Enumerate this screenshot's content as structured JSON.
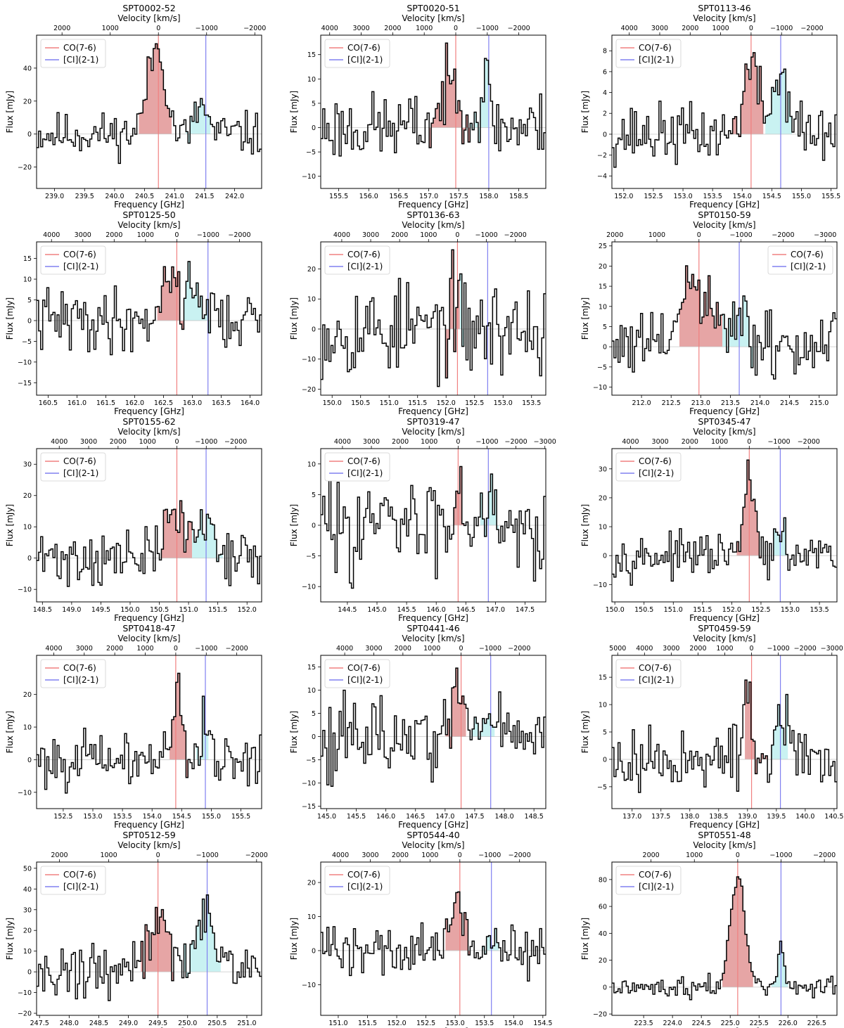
{
  "common": {
    "xlabel": "Frequency [GHz]",
    "x2label": "Velocity [km/s]",
    "ylabel": "Flux [mJy]",
    "legend": [
      "CO(7-6)",
      "[CI](2-1)"
    ],
    "colors": {
      "co_line": "#f08080",
      "ci_line": "#8080f0",
      "co_fill": "#e6a5a5",
      "ci_fill": "#c9f2f2",
      "spectrum": "#000000"
    }
  },
  "chart_data": [
    {
      "type": "line",
      "title": "SPT0002-52",
      "xlim": [
        238.7,
        242.45
      ],
      "ylim": [
        -33,
        60
      ],
      "xticks": [
        239.0,
        239.5,
        240.0,
        240.5,
        241.0,
        241.5,
        242.0
      ],
      "yticks": [
        -20,
        0,
        20,
        40
      ],
      "vticks": [
        2000,
        1000,
        0,
        -1000,
        -2000
      ],
      "co": 240.73,
      "ci": 241.52,
      "co_range": [
        240.4,
        240.95
      ],
      "ci_range": [
        241.2,
        241.6
      ],
      "legend_loc": "upper left",
      "peaks": [
        {
          "c": 240.65,
          "w": 0.13,
          "a": 42
        },
        {
          "c": 240.8,
          "w": 0.1,
          "a": 22
        },
        {
          "c": 241.45,
          "w": 0.09,
          "a": 18
        }
      ],
      "noise": 6.5,
      "seed": 11
    },
    {
      "type": "line",
      "title": "SPT0020-51",
      "xlim": [
        155.2,
        158.95
      ],
      "ylim": [
        -12.5,
        19
      ],
      "xticks": [
        155.5,
        156.0,
        156.5,
        157.0,
        157.5,
        158.0,
        158.5
      ],
      "yticks": [
        -10,
        -5,
        0,
        5,
        10,
        15
      ],
      "vticks": [
        4000,
        3000,
        2000,
        1000,
        0,
        -1000,
        -2000
      ],
      "co": 157.45,
      "ci": 158.0,
      "co_range": [
        157.0,
        157.7
      ],
      "ci_range": [
        157.7,
        158.0
      ],
      "legend_loc": "upper left",
      "peaks": [
        {
          "c": 157.4,
          "w": 0.18,
          "a": 9
        },
        {
          "c": 157.95,
          "w": 0.08,
          "a": 9
        }
      ],
      "noise": 3.5,
      "seed": 23
    },
    {
      "type": "line",
      "title": "SPT0113-46",
      "xlim": [
        151.8,
        155.6
      ],
      "ylim": [
        -5.2,
        9.5
      ],
      "xticks": [
        152.0,
        152.5,
        153.0,
        153.5,
        154.0,
        154.5,
        155.0,
        155.5
      ],
      "yticks": [
        -4,
        -2,
        0,
        2,
        4,
        6,
        8
      ],
      "vticks": [
        4000,
        3000,
        2000,
        1000,
        0,
        -1000,
        -2000
      ],
      "co": 154.15,
      "ci": 154.65,
      "co_range": [
        153.85,
        154.35
      ],
      "ci_range": [
        154.4,
        154.85
      ],
      "legend_loc": "upper left",
      "peaks": [
        {
          "c": 154.15,
          "w": 0.13,
          "a": 6.5
        },
        {
          "c": 154.65,
          "w": 0.14,
          "a": 5.5
        }
      ],
      "noise": 1.4,
      "seed": 37
    },
    {
      "type": "line",
      "title": "SPT0125-50",
      "xlim": [
        160.3,
        164.2
      ],
      "ylim": [
        -18,
        19
      ],
      "xticks": [
        160.5,
        161.0,
        161.5,
        162.0,
        162.5,
        163.0,
        163.5,
        164.0
      ],
      "yticks": [
        -15,
        -10,
        -5,
        0,
        5,
        10,
        15
      ],
      "vticks": [
        4000,
        3000,
        2000,
        1000,
        0,
        -1000,
        -2000
      ],
      "co": 162.73,
      "ci": 163.27,
      "co_range": [
        162.4,
        162.85
      ],
      "ci_range": [
        162.85,
        163.3
      ],
      "legend_loc": "upper left",
      "peaks": [
        {
          "c": 162.6,
          "w": 0.14,
          "a": 11
        },
        {
          "c": 163.05,
          "w": 0.16,
          "a": 8
        }
      ],
      "noise": 3.8,
      "seed": 41
    },
    {
      "type": "line",
      "title": "SPT0136-63",
      "xlim": [
        149.8,
        153.75
      ],
      "ylim": [
        -22,
        29
      ],
      "xticks": [
        150.0,
        150.5,
        151.0,
        151.5,
        152.0,
        152.5,
        153.0,
        153.5
      ],
      "yticks": [
        -20,
        -10,
        0,
        10,
        20
      ],
      "vticks": [
        4000,
        3000,
        2000,
        1000,
        0,
        -1000,
        -2000
      ],
      "co": 152.2,
      "ci": 152.73,
      "co_range": [
        152.0,
        152.25
      ],
      "ci_range": [
        152.25,
        152.3
      ],
      "legend_loc": "upper left",
      "peaks": [
        {
          "c": 152.15,
          "w": 0.08,
          "a": 7
        }
      ],
      "noise": 8,
      "seed": 53
    },
    {
      "type": "line",
      "title": "SPT0150-59",
      "xlim": [
        211.5,
        215.3
      ],
      "ylim": [
        -12,
        26
      ],
      "xticks": [
        212.0,
        212.5,
        213.0,
        213.5,
        214.0,
        214.5,
        215.0
      ],
      "yticks": [
        -10,
        -5,
        0,
        5,
        10,
        15,
        20,
        25
      ],
      "vticks": [
        2000,
        1000,
        0,
        -1000,
        -2000,
        -3000
      ],
      "co": 212.97,
      "ci": 213.65,
      "co_range": [
        212.65,
        213.35
      ],
      "ci_range": [
        213.35,
        213.9
      ],
      "legend_loc": "upper right",
      "peaks": [
        {
          "c": 212.9,
          "w": 0.22,
          "a": 15
        },
        {
          "c": 213.6,
          "w": 0.14,
          "a": 7
        }
      ],
      "noise": 4.5,
      "seed": 61
    },
    {
      "type": "line",
      "title": "SPT0155-62",
      "xlim": [
        148.4,
        152.25
      ],
      "ylim": [
        -14,
        35
      ],
      "xticks": [
        148.5,
        149.0,
        149.5,
        150.0,
        150.5,
        151.0,
        151.5,
        152.0
      ],
      "yticks": [
        -10,
        0,
        10,
        20,
        30
      ],
      "vticks": [
        4000,
        3000,
        2000,
        1000,
        0,
        -1000,
        -2000
      ],
      "co": 150.8,
      "ci": 151.3,
      "co_range": [
        150.55,
        151.05
      ],
      "ci_range": [
        151.05,
        151.6
      ],
      "legend_loc": "upper left",
      "peaks": [
        {
          "c": 150.75,
          "w": 0.16,
          "a": 14
        },
        {
          "c": 151.3,
          "w": 0.2,
          "a": 11
        }
      ],
      "noise": 4.5,
      "seed": 71
    },
    {
      "type": "line",
      "title": "SPT0319-47",
      "xlim": [
        144.05,
        147.85
      ],
      "ylim": [
        -12.5,
        12.5
      ],
      "xticks": [
        144.5,
        145.0,
        145.5,
        146.0,
        146.5,
        147.0,
        147.5
      ],
      "yticks": [
        -10,
        -5,
        0,
        5,
        10
      ],
      "vticks": [
        4000,
        3000,
        2000,
        1000,
        0,
        -1000,
        -2000,
        -3000
      ],
      "co": 146.37,
      "ci": 146.88,
      "co_range": [
        146.3,
        146.5
      ],
      "ci_range": [
        146.75,
        147.05
      ],
      "legend_loc": "upper left",
      "peaks": [
        {
          "c": 146.38,
          "w": 0.08,
          "a": 7
        },
        {
          "c": 146.88,
          "w": 0.12,
          "a": 6
        }
      ],
      "noise": 3.8,
      "seed": 83
    },
    {
      "type": "line",
      "title": "SPT0345-47",
      "xlim": [
        149.95,
        153.8
      ],
      "ylim": [
        -16,
        37
      ],
      "xticks": [
        150.0,
        150.5,
        151.0,
        151.5,
        152.0,
        152.5,
        153.0,
        153.5
      ],
      "yticks": [
        -10,
        0,
        10,
        20,
        30
      ],
      "vticks": [
        4000,
        3000,
        2000,
        1000,
        0,
        -1000,
        -2000
      ],
      "co": 152.3,
      "ci": 152.83,
      "co_range": [
        152.1,
        152.5
      ],
      "ci_range": [
        152.7,
        152.95
      ],
      "legend_loc": "upper left",
      "peaks": [
        {
          "c": 152.3,
          "w": 0.08,
          "a": 29
        },
        {
          "c": 152.82,
          "w": 0.07,
          "a": 7
        }
      ],
      "noise": 3.5,
      "seed": 97
    },
    {
      "type": "line",
      "title": "SPT0418-47",
      "xlim": [
        152.05,
        155.85
      ],
      "ylim": [
        -15,
        32
      ],
      "xticks": [
        152.5,
        153.0,
        153.5,
        154.0,
        154.5,
        155.0,
        155.5
      ],
      "yticks": [
        -10,
        0,
        10,
        20
      ],
      "vticks": [
        4000,
        3000,
        2000,
        1000,
        0,
        -1000,
        -2000
      ],
      "co": 154.4,
      "ci": 154.9,
      "co_range": [
        154.3,
        154.6
      ],
      "ci_range": [
        154.75,
        154.95
      ],
      "legend_loc": "upper left",
      "peaks": [
        {
          "c": 154.43,
          "w": 0.07,
          "a": 25
        },
        {
          "c": 154.9,
          "w": 0.06,
          "a": 14
        }
      ],
      "noise": 4,
      "seed": 101
    },
    {
      "type": "line",
      "title": "SPT0441-46",
      "xlim": [
        144.9,
        148.7
      ],
      "ylim": [
        -15.5,
        17.5
      ],
      "xticks": [
        145.0,
        145.5,
        146.0,
        146.5,
        147.0,
        147.5,
        148.0,
        148.5
      ],
      "yticks": [
        -15,
        -10,
        -5,
        0,
        5,
        10,
        15
      ],
      "vticks": [
        4000,
        3000,
        2000,
        1000,
        0,
        -1000,
        -2000,
        -3000
      ],
      "co": 147.27,
      "ci": 147.77,
      "co_range": [
        147.0,
        147.35
      ],
      "ci_range": [
        147.45,
        147.85
      ],
      "legend_loc": "upper left",
      "peaks": [
        {
          "c": 147.22,
          "w": 0.1,
          "a": 9
        },
        {
          "c": 147.75,
          "w": 0.1,
          "a": 7
        }
      ],
      "noise": 4.2,
      "seed": 113
    },
    {
      "type": "line",
      "title": "SPT0459-59",
      "xlim": [
        136.65,
        140.55
      ],
      "ylim": [
        -9,
        19
      ],
      "xticks": [
        137.0,
        137.5,
        138.0,
        138.5,
        139.0,
        139.5,
        140.0,
        140.5
      ],
      "yticks": [
        -5,
        0,
        5,
        10,
        15
      ],
      "vticks": [
        5000,
        4000,
        3000,
        2000,
        1000,
        0,
        -1000,
        -2000,
        -3000
      ],
      "co": 139.07,
      "ci": 139.57,
      "co_range": [
        138.95,
        139.35
      ],
      "ci_range": [
        139.4,
        139.7
      ],
      "legend_loc": "upper left",
      "peaks": [
        {
          "c": 139.0,
          "w": 0.06,
          "a": 13
        },
        {
          "c": 139.58,
          "w": 0.08,
          "a": 9
        }
      ],
      "noise": 3,
      "seed": 127
    },
    {
      "type": "line",
      "title": "SPT0512-59",
      "xlim": [
        247.45,
        251.25
      ],
      "ylim": [
        -21,
        53
      ],
      "xticks": [
        247.5,
        248.0,
        248.5,
        249.0,
        249.5,
        250.0,
        250.5,
        251.0
      ],
      "yticks": [
        -20,
        -10,
        0,
        10,
        20,
        30,
        40,
        50
      ],
      "vticks": [
        2000,
        1000,
        0,
        -1000,
        -2000
      ],
      "co": 249.5,
      "ci": 250.33,
      "co_range": [
        249.2,
        249.75
      ],
      "ci_range": [
        249.95,
        250.55
      ],
      "legend_loc": "upper left",
      "peaks": [
        {
          "c": 249.5,
          "w": 0.2,
          "a": 24
        },
        {
          "c": 250.28,
          "w": 0.14,
          "a": 32
        }
      ],
      "noise": 6.5,
      "seed": 131
    },
    {
      "type": "line",
      "title": "SPT0544-40",
      "xlim": [
        150.7,
        154.55
      ],
      "ylim": [
        -19,
        26
      ],
      "xticks": [
        151.0,
        151.5,
        152.0,
        152.5,
        153.0,
        153.5,
        154.0,
        154.5
      ],
      "yticks": [
        -10,
        0,
        10,
        20
      ],
      "vticks": [
        4000,
        3000,
        2000,
        1000,
        0,
        -1000,
        -2000
      ],
      "co": 153.08,
      "ci": 153.62,
      "co_range": [
        152.85,
        153.25
      ],
      "ci_range": [
        153.45,
        153.75
      ],
      "legend_loc": "upper left",
      "peaks": [
        {
          "c": 153.05,
          "w": 0.11,
          "a": 15
        },
        {
          "c": 153.6,
          "w": 0.1,
          "a": 4
        }
      ],
      "noise": 4,
      "seed": 139
    },
    {
      "type": "line",
      "title": "SPT0551-48",
      "xlim": [
        222.95,
        226.85
      ],
      "ylim": [
        -21,
        93
      ],
      "xticks": [
        223.5,
        224.0,
        224.5,
        225.0,
        225.5,
        226.0,
        226.5
      ],
      "yticks": [
        -20,
        0,
        20,
        40,
        60,
        80
      ],
      "vticks": [
        2000,
        1000,
        0,
        -1000,
        -2000
      ],
      "co": 225.13,
      "ci": 225.88,
      "co_range": [
        224.85,
        225.4
      ],
      "ci_range": [
        225.7,
        226.0
      ],
      "legend_loc": "upper left",
      "peaks": [
        {
          "c": 225.13,
          "w": 0.13,
          "a": 80
        },
        {
          "c": 225.88,
          "w": 0.06,
          "a": 32
        }
      ],
      "noise": 3.5,
      "seed": 149
    }
  ]
}
